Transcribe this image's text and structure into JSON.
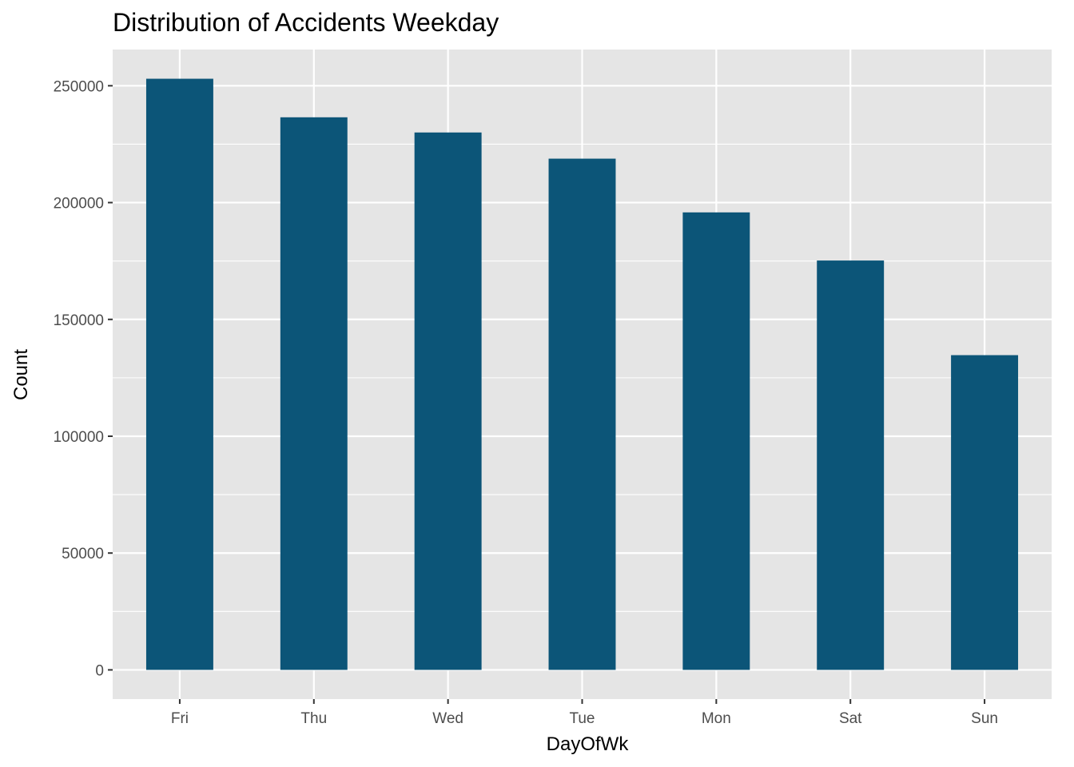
{
  "chart_data": {
    "type": "bar",
    "title": "Distribution of Accidents Weekday",
    "xlabel": "DayOfWk",
    "ylabel": "Count",
    "categories": [
      "Fri",
      "Thu",
      "Wed",
      "Tue",
      "Mon",
      "Sat",
      "Sun"
    ],
    "values": [
      253000,
      236500,
      230000,
      218800,
      195800,
      175200,
      134700
    ],
    "ylim": [
      -12500,
      265500
    ],
    "yticks": [
      0,
      50000,
      100000,
      150000,
      200000,
      250000
    ],
    "ytick_labels": [
      "0",
      "50000",
      "100000",
      "150000",
      "200000",
      "250000"
    ],
    "grid": true,
    "legend": "none",
    "colors": {
      "bar": "#0c5578",
      "panel": "#e5e5e5",
      "grid": "#ffffff",
      "tick": "#333333"
    }
  }
}
